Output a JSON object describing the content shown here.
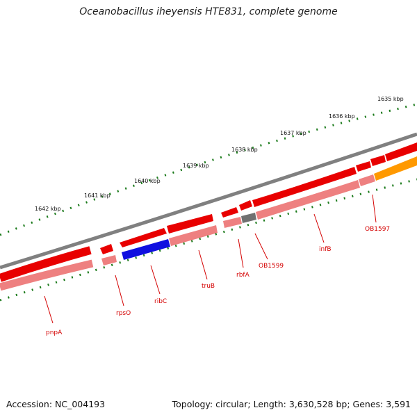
{
  "title": "Oceanobacillus iheyensis HTE831, complete genome",
  "footer": {
    "accession": "Accession: NC_004193",
    "stats": "Topology: circular; Length: 3,630,528 bp; Genes: 3,591"
  },
  "colors": {
    "backbone": "#808080",
    "tick": "#1a7a1a",
    "gene": "#e80000",
    "gene_light": "#ee8080",
    "ribC": "#1010e0",
    "OB1599": "#707070",
    "orange": "#ff9900",
    "label": "#d40000"
  },
  "scale_labels": [
    "1635 kbp",
    "1636 kbp",
    "1637 kbp",
    "1638 kbp",
    "1639 kbp",
    "1640 kbp",
    "1641 kbp",
    "1642 kbp"
  ],
  "genes": [
    "pnpA",
    "rpsO",
    "ribC",
    "truB",
    "rbfA",
    "OB1599",
    "infB",
    "OB1597"
  ]
}
